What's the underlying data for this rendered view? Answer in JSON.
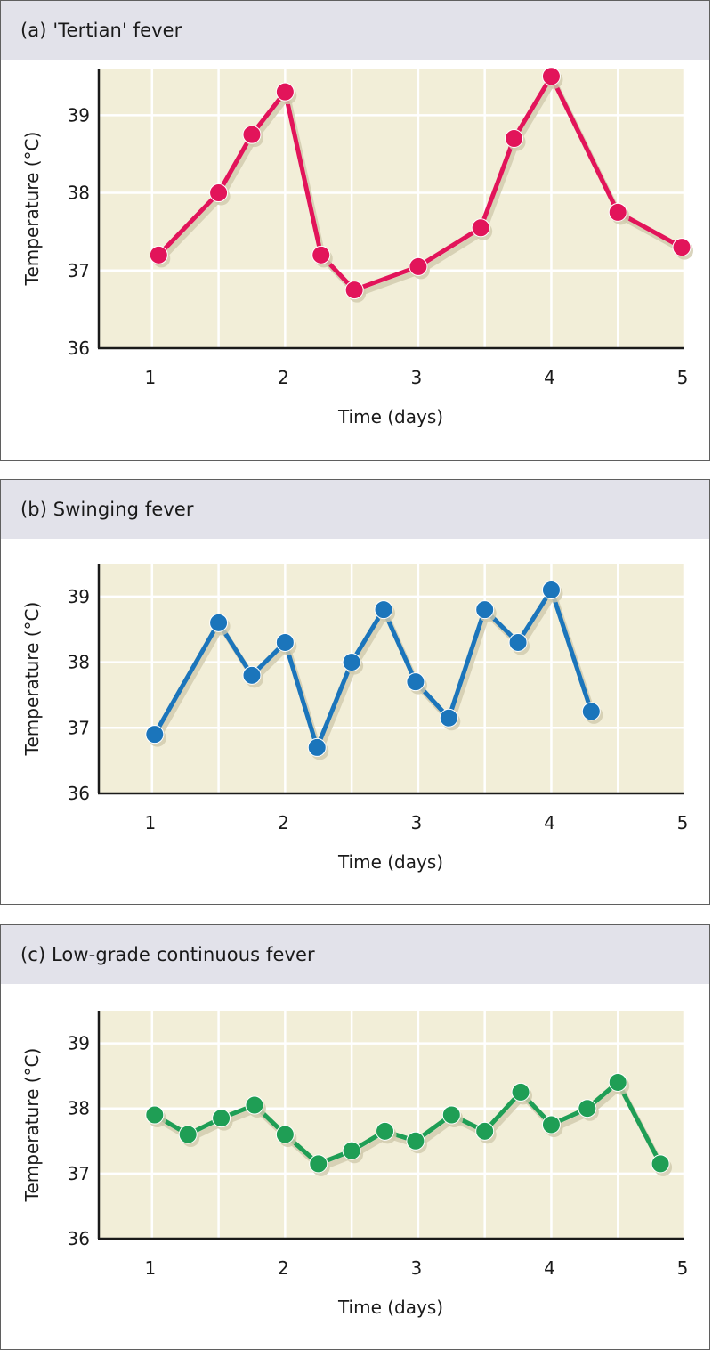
{
  "chart_data": [
    {
      "type": "line",
      "title": "(a) 'Tertian' fever",
      "xlabel": "Time (days)",
      "ylabel": "Temperature (°C)",
      "xlim": [
        0.6,
        5
      ],
      "ylim": [
        36,
        39.6
      ],
      "xticks": [
        "1",
        "2",
        "3",
        "4",
        "5"
      ],
      "yticks": [
        "36",
        "37",
        "38",
        "39"
      ],
      "grid": true,
      "color": "#e2145a",
      "x": [
        1.05,
        1.5,
        1.75,
        2.0,
        2.27,
        2.52,
        3.0,
        3.47,
        3.72,
        4.0,
        4.5,
        4.98
      ],
      "values": [
        37.2,
        38.0,
        38.75,
        39.3,
        37.2,
        36.75,
        37.05,
        37.55,
        38.7,
        39.5,
        37.75,
        37.3
      ]
    },
    {
      "type": "line",
      "title": "(b) Swinging fever",
      "xlabel": "Time (days)",
      "ylabel": "Temperature (°C)",
      "xlim": [
        0.6,
        5
      ],
      "ylim": [
        36,
        39.5
      ],
      "xticks": [
        "1",
        "2",
        "3",
        "4",
        "5"
      ],
      "yticks": [
        "36",
        "37",
        "38",
        "39"
      ],
      "grid": true,
      "color": "#1b75bb",
      "x": [
        1.02,
        1.5,
        1.75,
        2.0,
        2.24,
        2.5,
        2.74,
        2.98,
        3.23,
        3.5,
        3.75,
        4.0,
        4.3
      ],
      "values": [
        36.9,
        38.6,
        37.8,
        38.3,
        36.7,
        38.0,
        38.8,
        37.7,
        37.15,
        38.8,
        38.3,
        39.1,
        37.25
      ]
    },
    {
      "type": "line",
      "title": "(c) Low-grade continuous fever",
      "xlabel": "Time (days)",
      "ylabel": "Temperature (°C)",
      "xlim": [
        0.6,
        5
      ],
      "ylim": [
        36,
        39.5
      ],
      "xticks": [
        "1",
        "2",
        "3",
        "4",
        "5"
      ],
      "yticks": [
        "36",
        "37",
        "38",
        "39"
      ],
      "grid": true,
      "color": "#1f9e55",
      "x": [
        1.02,
        1.27,
        1.52,
        1.77,
        2.0,
        2.25,
        2.5,
        2.75,
        2.98,
        3.25,
        3.5,
        3.77,
        4.0,
        4.27,
        4.5,
        4.82
      ],
      "values": [
        37.9,
        37.6,
        37.85,
        38.05,
        37.6,
        37.15,
        37.35,
        37.65,
        37.5,
        37.9,
        37.65,
        38.25,
        37.75,
        38.0,
        38.4,
        37.15
      ]
    }
  ]
}
